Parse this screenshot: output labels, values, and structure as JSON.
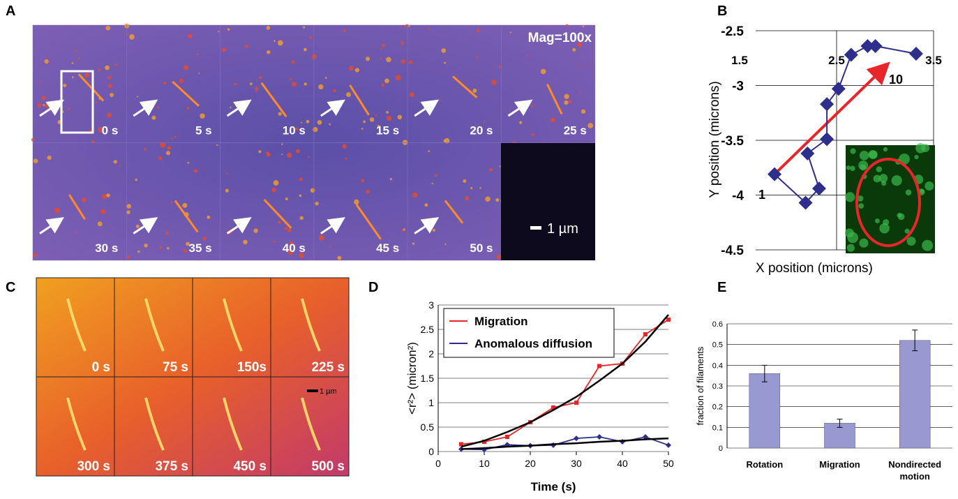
{
  "panel_labels": [
    "A",
    "B",
    "C",
    "D",
    "E"
  ],
  "panel_a": {
    "magnification": "Mag=100x",
    "times": [
      "0 s",
      "5 s",
      "10 s",
      "15 s",
      "20 s",
      "25 s",
      "30 s",
      "35 s",
      "40 s",
      "45 s",
      "50 s"
    ],
    "scale_bar": "1 µm"
  },
  "panel_c": {
    "times": [
      "0 s",
      "75 s",
      "150s",
      "225 s",
      "300 s",
      "375 s",
      "450 s",
      "500 s"
    ],
    "scale_bar": "1 µm"
  },
  "chart_data": [
    {
      "type": "line",
      "x_label": "X position (microns)",
      "y_label": "Y position (microns)",
      "x": [
        1.86,
        2.18,
        2.32,
        2.2,
        2.4,
        2.4,
        2.52,
        2.65,
        2.82,
        2.9,
        3.32
      ],
      "series": [
        {
          "color": "#2e2e8c",
          "values": [
            -3.81,
            -4.07,
            -3.94,
            -3.62,
            -3.49,
            -3.17,
            -3.03,
            -2.72,
            -2.64,
            -2.64,
            -2.71
          ]
        }
      ],
      "annotations": [
        "1",
        "10"
      ],
      "xlim": [
        1.5,
        3.5
      ],
      "xticks": [
        1.5,
        2.5,
        3.5
      ],
      "ylim": [
        -4.5,
        -2.5
      ],
      "yticks": [
        -2.5,
        -3,
        -3.5,
        -4,
        -4.5
      ],
      "grid": true
    },
    {
      "type": "line",
      "x_label": "Time (s)",
      "y_label": "<r²> (micron²)",
      "x": [
        5,
        10,
        15,
        20,
        25,
        30,
        35,
        40,
        45,
        50
      ],
      "series": [
        {
          "name": "Migration",
          "color": "#e8262a",
          "values": [
            0.15,
            0.2,
            0.3,
            0.6,
            0.9,
            1.0,
            1.75,
            1.8,
            2.4,
            2.7
          ]
        },
        {
          "name": "Anomalous diffusion",
          "color": "#2e2e8c",
          "values": [
            0.05,
            0.04,
            0.14,
            0.12,
            0.13,
            0.27,
            0.3,
            0.2,
            0.3,
            0.13
          ]
        },
        {
          "color": "#000000",
          "values": [
            0.1,
            0.22,
            0.4,
            0.6,
            0.85,
            1.12,
            1.45,
            1.8,
            2.25,
            2.8
          ]
        },
        {
          "color": "#000000",
          "values": [
            0.05,
            0.07,
            0.1,
            0.12,
            0.15,
            0.17,
            0.2,
            0.22,
            0.25,
            0.27
          ]
        }
      ],
      "xlim": [
        0,
        50
      ],
      "xticks": [
        0,
        10,
        20,
        30,
        40,
        50
      ],
      "ylim": [
        0,
        3
      ],
      "yticks": [
        0,
        0.5,
        1,
        1.5,
        2,
        2.5,
        3
      ],
      "grid": true
    },
    {
      "type": "bar",
      "y_label": "fraction of filaments",
      "categories": [
        "Rotation",
        "Migration",
        "Nondirected motion"
      ],
      "values": [
        0.36,
        0.12,
        0.52
      ],
      "errors": [
        0.04,
        0.02,
        0.05
      ],
      "color": "#9999d1",
      "ylim": [
        0,
        0.6
      ],
      "yticks": [
        0,
        0.1,
        0.2,
        0.3,
        0.4,
        0.5,
        0.6
      ],
      "grid": true
    }
  ]
}
